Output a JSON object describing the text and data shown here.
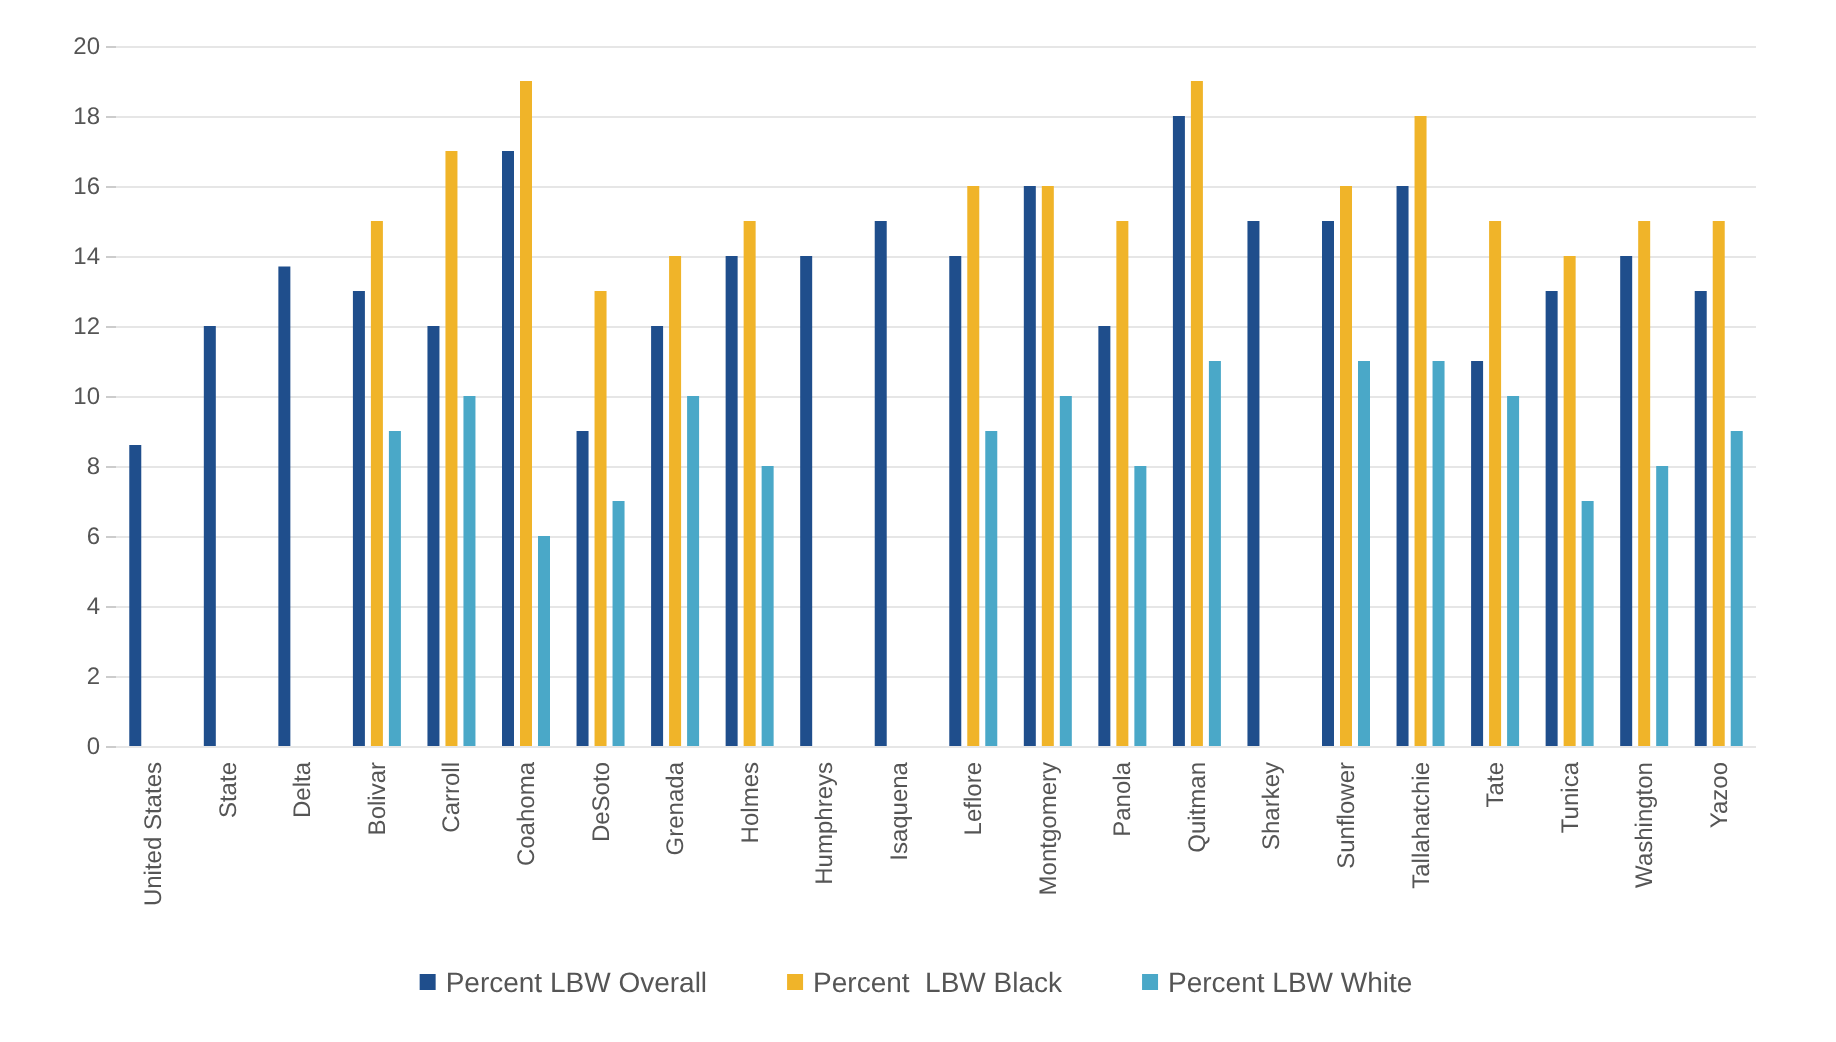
{
  "chart_data": {
    "type": "bar",
    "categories": [
      "United States",
      "State",
      "Delta",
      "Bolivar",
      "Carroll",
      "Coahoma",
      "DeSoto",
      "Grenada",
      "Holmes",
      "Humphreys",
      "Isaquena",
      "Leflore",
      "Montgomery",
      "Panola",
      "Quitman",
      "Sharkey",
      "Sunflower",
      "Tallahatchie",
      "Tate",
      "Tunica",
      "Washington",
      "Yazoo"
    ],
    "series": [
      {
        "name": "Percent LBW Overall",
        "color": "#1f4e8c",
        "values": [
          8.6,
          12,
          13.7,
          13,
          12,
          17,
          9,
          12,
          14,
          14,
          15,
          14,
          16,
          12,
          18,
          15,
          15,
          16,
          11,
          13,
          14,
          13
        ]
      },
      {
        "name": "Percent  LBW Black",
        "color": "#f0b429",
        "values": [
          null,
          null,
          null,
          15,
          17,
          19,
          13,
          14,
          15,
          null,
          null,
          16,
          16,
          15,
          19,
          null,
          16,
          18,
          15,
          14,
          15,
          15
        ]
      },
      {
        "name": "Percent LBW White",
        "color": "#4aa8c8",
        "values": [
          null,
          null,
          null,
          9,
          10,
          6,
          7,
          10,
          8,
          null,
          null,
          9,
          10,
          8,
          11,
          null,
          11,
          11,
          10,
          7,
          8,
          9
        ]
      }
    ],
    "ylim": [
      0,
      20
    ],
    "yticks": [
      0,
      2,
      4,
      6,
      8,
      10,
      12,
      14,
      16,
      18,
      20
    ],
    "grid": "y",
    "legend": "bottom"
  }
}
